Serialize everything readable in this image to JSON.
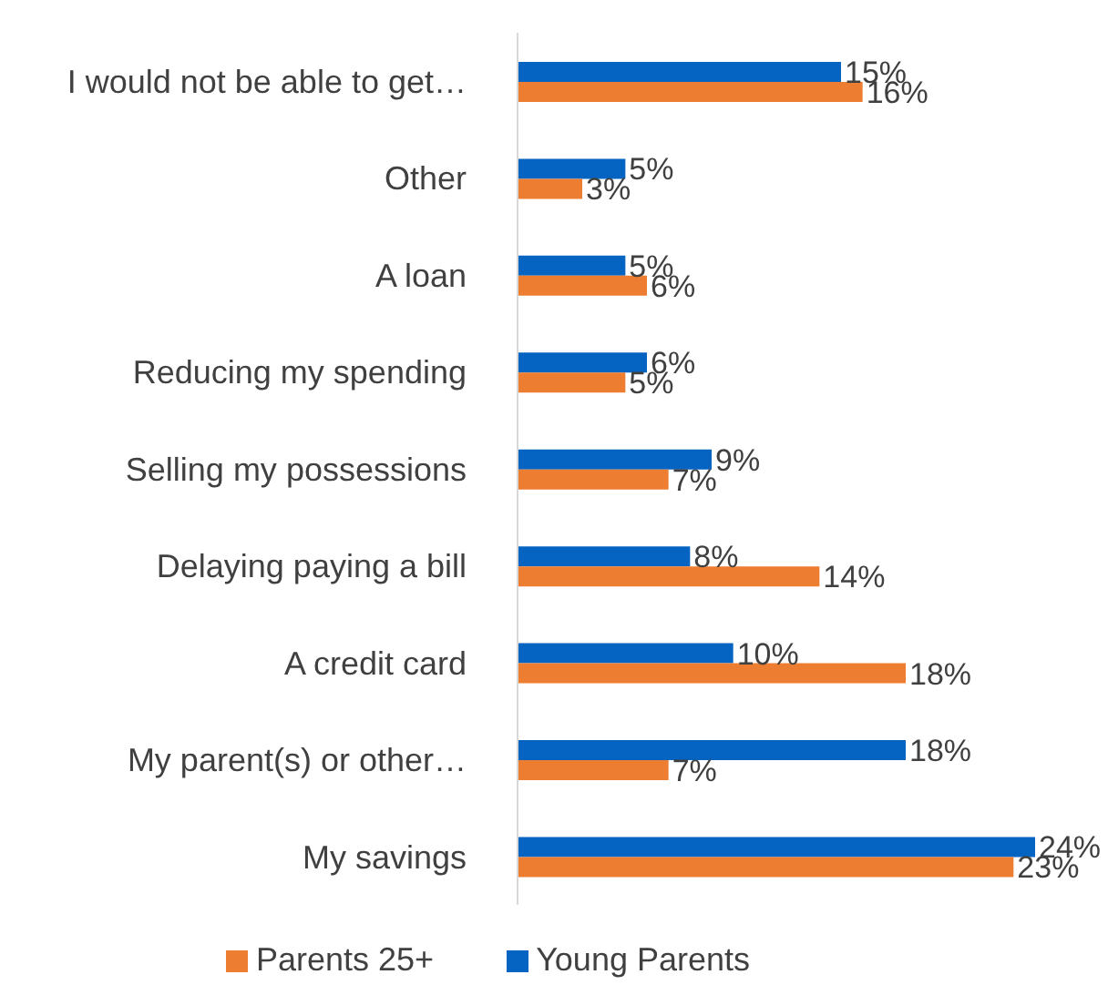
{
  "chart_data": {
    "type": "bar",
    "orientation": "horizontal",
    "categories": [
      "I would not be able to get…",
      "Other",
      "A loan",
      "Reducing my spending",
      "Selling my possessions",
      "Delaying paying a bill",
      "A credit card",
      "My parent(s) or other…",
      "My savings"
    ],
    "series": [
      {
        "name": "Young Parents",
        "color": "#0563c1",
        "values": [
          15,
          5,
          5,
          6,
          9,
          8,
          10,
          18,
          24
        ],
        "value_labels": [
          "15%",
          "5%",
          "5%",
          "6%",
          "9%",
          "8%",
          "10%",
          "18%",
          "24%"
        ]
      },
      {
        "name": "Parents 25+",
        "color": "#ed7d31",
        "values": [
          16,
          3,
          6,
          5,
          7,
          14,
          18,
          7,
          23
        ],
        "value_labels": [
          "16%",
          "3%",
          "6%",
          "5%",
          "7%",
          "14%",
          "18%",
          "7%",
          "23%"
        ]
      }
    ],
    "grid": false,
    "legend": "bottom"
  }
}
